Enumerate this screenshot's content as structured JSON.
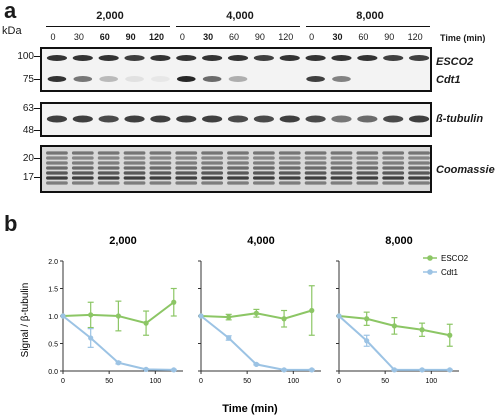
{
  "panel_a": {
    "letter": "a",
    "kda": "kDa",
    "groups": [
      "2,000",
      "4,000",
      "8,000"
    ],
    "time_label": "Time (min)",
    "time_points": [
      "0",
      "30",
      "60",
      "90",
      "120"
    ],
    "blots": [
      {
        "name": "ESCO2 / Cdt1",
        "markers": [
          "100",
          "75"
        ],
        "labels": [
          "ESCO2",
          "Cdt1"
        ]
      },
      {
        "name": "beta-tubulin",
        "markers": [
          "63",
          "48"
        ],
        "labels": [
          "ß-tubulin"
        ]
      },
      {
        "name": "Coomassie",
        "markers": [
          "20",
          "17"
        ],
        "labels": [
          "Coomassie"
        ]
      }
    ],
    "band_intensity": {
      "ESCO2": [
        [
          0.85,
          0.85,
          0.85,
          0.8,
          0.85
        ],
        [
          0.85,
          0.85,
          0.85,
          0.8,
          0.85
        ],
        [
          0.85,
          0.85,
          0.85,
          0.8,
          0.8
        ]
      ],
      "Cdt1": [
        [
          0.85,
          0.55,
          0.25,
          0.08,
          0.05
        ],
        [
          0.9,
          0.6,
          0.3,
          0.0,
          0.0
        ],
        [
          0.8,
          0.5,
          0.0,
          0.0,
          0.0
        ]
      ],
      "tubulin": [
        [
          0.8,
          0.8,
          0.75,
          0.8,
          0.8
        ],
        [
          0.8,
          0.8,
          0.75,
          0.75,
          0.8
        ],
        [
          0.75,
          0.55,
          0.6,
          0.75,
          0.8
        ]
      ]
    }
  },
  "panel_b": {
    "letter": "b",
    "ylabel": "Signal / β-tubulin",
    "xlabel": "Time (min)",
    "yticks": [
      "0.0",
      "0.5",
      "1.0",
      "1.5",
      "2.0"
    ],
    "xticks": [
      "0",
      "50",
      "100"
    ],
    "legend": [
      {
        "name": "ESCO2",
        "color": "#8cc665"
      },
      {
        "name": "Cdt1",
        "color": "#9cc3e4"
      }
    ]
  },
  "chart_data": [
    {
      "type": "line",
      "title": "2,000",
      "ylim": [
        0,
        2.0
      ],
      "xlim": [
        0,
        130
      ],
      "x": [
        0,
        30,
        60,
        90,
        120
      ],
      "series": [
        {
          "name": "ESCO2",
          "values": [
            1.0,
            1.02,
            1.0,
            0.87,
            1.25
          ],
          "err": [
            0.0,
            0.23,
            0.27,
            0.22,
            0.25
          ],
          "color": "#8cc665"
        },
        {
          "name": "Cdt1",
          "values": [
            1.0,
            0.6,
            0.15,
            0.03,
            0.02
          ],
          "err": [
            0.0,
            0.17,
            0.02,
            0.01,
            0.01
          ],
          "color": "#9cc3e4"
        }
      ]
    },
    {
      "type": "line",
      "title": "4,000",
      "ylim": [
        0,
        2.0
      ],
      "xlim": [
        0,
        130
      ],
      "x": [
        0,
        30,
        60,
        90,
        120
      ],
      "series": [
        {
          "name": "ESCO2",
          "values": [
            1.0,
            0.98,
            1.05,
            0.95,
            1.1
          ],
          "err": [
            0.0,
            0.05,
            0.07,
            0.15,
            0.45
          ],
          "color": "#8cc665"
        },
        {
          "name": "Cdt1",
          "values": [
            1.0,
            0.6,
            0.12,
            0.02,
            0.02
          ],
          "err": [
            0.0,
            0.04,
            0.01,
            0.01,
            0.01
          ],
          "color": "#9cc3e4"
        }
      ]
    },
    {
      "type": "line",
      "title": "8,000",
      "ylim": [
        0,
        2.0
      ],
      "xlim": [
        0,
        130
      ],
      "x": [
        0,
        30,
        60,
        90,
        120
      ],
      "series": [
        {
          "name": "ESCO2",
          "values": [
            1.0,
            0.95,
            0.82,
            0.75,
            0.65
          ],
          "err": [
            0.0,
            0.12,
            0.15,
            0.12,
            0.2
          ],
          "color": "#8cc665"
        },
        {
          "name": "Cdt1",
          "values": [
            1.0,
            0.55,
            0.02,
            0.02,
            0.02
          ],
          "err": [
            0.0,
            0.1,
            0.01,
            0.01,
            0.01
          ],
          "color": "#9cc3e4"
        }
      ]
    }
  ]
}
